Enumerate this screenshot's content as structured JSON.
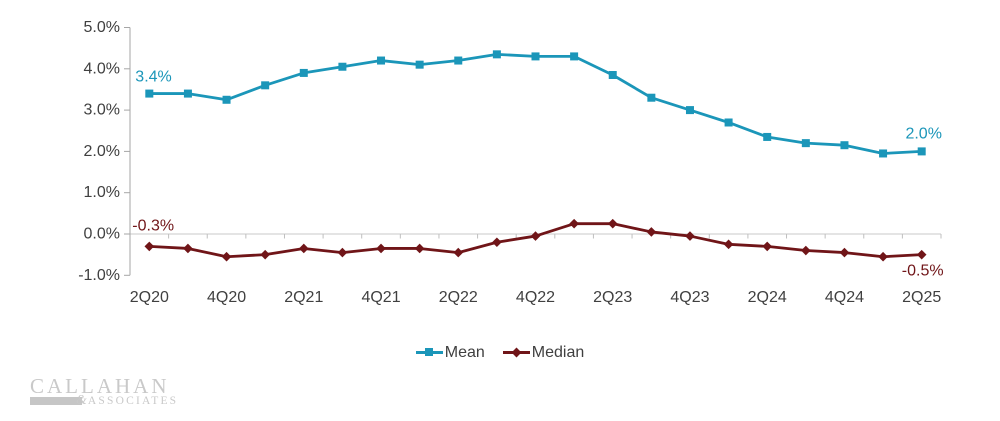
{
  "chart_data": {
    "type": "line",
    "title": "",
    "categories": [
      "2Q20",
      "3Q20",
      "4Q20",
      "1Q21",
      "2Q21",
      "3Q21",
      "4Q21",
      "1Q22",
      "2Q22",
      "3Q22",
      "4Q22",
      "1Q23",
      "2Q23",
      "3Q23",
      "4Q23",
      "1Q24",
      "2Q24",
      "3Q24",
      "4Q24",
      "1Q25",
      "2Q25"
    ],
    "x_tick_labels": [
      "2Q20",
      "4Q20",
      "2Q21",
      "4Q21",
      "2Q22",
      "4Q22",
      "2Q23",
      "4Q23",
      "2Q24",
      "4Q24",
      "2Q25"
    ],
    "x_label_every": 2,
    "y_axis": {
      "min": -1,
      "max": 5,
      "step": 1,
      "tick_labels": [
        "5.0%",
        "4.0%",
        "3.0%",
        "2.0%",
        "1.0%",
        "0.0%",
        "-1.0%"
      ],
      "format": "percent"
    },
    "grid": "zero-line-only",
    "legend_position": "bottom",
    "series": [
      {
        "name": "Mean",
        "color": "#1B96B9",
        "marker": "square",
        "values": [
          3.4,
          3.4,
          3.25,
          3.6,
          3.9,
          4.05,
          4.2,
          4.1,
          4.2,
          4.35,
          4.3,
          4.3,
          3.85,
          3.3,
          3.0,
          2.7,
          2.35,
          2.2,
          2.15,
          1.95,
          2.0
        ],
        "first_point_label": "3.4%",
        "last_point_label": "2.0%"
      },
      {
        "name": "Median",
        "color": "#701518",
        "marker": "diamond",
        "values": [
          -0.3,
          -0.35,
          -0.55,
          -0.5,
          -0.35,
          -0.45,
          -0.35,
          -0.35,
          -0.45,
          -0.2,
          -0.05,
          0.25,
          0.25,
          0.05,
          -0.05,
          -0.25,
          -0.3,
          -0.4,
          -0.45,
          -0.55,
          -0.5
        ],
        "first_point_label": "-0.3%",
        "last_point_label": "-0.5%"
      }
    ]
  },
  "legend": {
    "items": [
      {
        "label": "Mean"
      },
      {
        "label": "Median"
      }
    ]
  },
  "logo": {
    "name": "CALLAHAN",
    "ampersand": "&",
    "subtitle": "ASSOCIATES"
  },
  "colors": {
    "mean": "#1B96B9",
    "median": "#701518",
    "axis_text": "#404040",
    "axis_line": "#A6A6A6",
    "gridline": "#C9C9C9",
    "logo_gray": "#C9C9C9"
  }
}
